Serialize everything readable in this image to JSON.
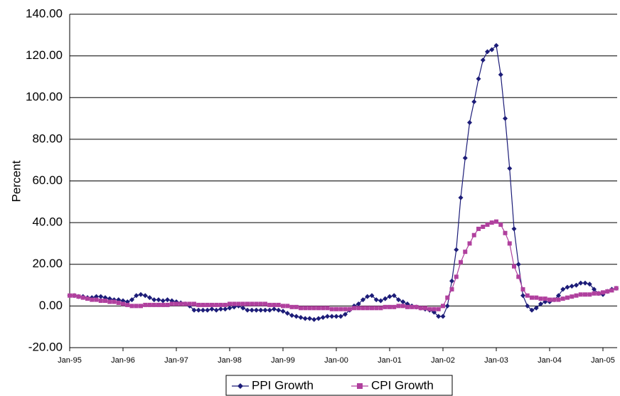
{
  "chart_data": {
    "type": "line",
    "y_label": "Percent",
    "categories": [
      "Jan-95",
      null,
      null,
      null,
      null,
      null,
      null,
      null,
      null,
      null,
      null,
      null,
      "Jan-96",
      null,
      null,
      null,
      null,
      null,
      null,
      null,
      null,
      null,
      null,
      null,
      "Jan-97",
      null,
      null,
      null,
      null,
      null,
      null,
      null,
      null,
      null,
      null,
      null,
      "Jan-98",
      null,
      null,
      null,
      null,
      null,
      null,
      null,
      null,
      null,
      null,
      null,
      "Jan-99",
      null,
      null,
      null,
      null,
      null,
      null,
      null,
      null,
      null,
      null,
      null,
      "Jan-00",
      null,
      null,
      null,
      null,
      null,
      null,
      null,
      null,
      null,
      null,
      null,
      "Jan-01",
      null,
      null,
      null,
      null,
      null,
      null,
      null,
      null,
      null,
      null,
      null,
      "Jan-02",
      null,
      null,
      null,
      null,
      null,
      null,
      null,
      null,
      null,
      null,
      null,
      "Jan-03",
      null,
      null,
      null,
      null,
      null,
      null,
      null,
      null,
      null,
      null,
      null,
      "Jan-04",
      null,
      null,
      null,
      null,
      null,
      null,
      null,
      null,
      null,
      null,
      null,
      "Jan-05",
      null,
      null,
      null
    ],
    "series": [
      {
        "name": "PPI Growth",
        "color": "#1c1c78",
        "marker": "diamond",
        "values": [
          5,
          5,
          4.5,
          4.5,
          4,
          4,
          4.5,
          4.5,
          4,
          3.5,
          3,
          3,
          2.5,
          2,
          3,
          5,
          5.5,
          5,
          4,
          3,
          3,
          2.5,
          3,
          2.5,
          2,
          1.5,
          1,
          0,
          -2,
          -2,
          -2,
          -2,
          -1.5,
          -2,
          -1.5,
          -1.5,
          -1,
          -0.5,
          0,
          -1,
          -2,
          -2,
          -2,
          -2,
          -2,
          -2,
          -1.5,
          -2,
          -2.5,
          -3.5,
          -4.5,
          -5,
          -5.5,
          -6,
          -6,
          -6.5,
          -6,
          -5.5,
          -5,
          -5,
          -5,
          -5,
          -4,
          -2,
          0,
          1,
          3,
          4.5,
          5,
          3,
          2.5,
          3.5,
          4.5,
          5,
          3,
          2,
          1,
          0,
          -0.5,
          -1,
          -1.5,
          -2,
          -3,
          -5,
          -5,
          0,
          12,
          27,
          52,
          71,
          88,
          98,
          109,
          118,
          122,
          123,
          125,
          111,
          90,
          66,
          37,
          20,
          5,
          0,
          -2,
          -1,
          1,
          2,
          2,
          3,
          5,
          8,
          9,
          9.5,
          10,
          11,
          11,
          10.5,
          8,
          6,
          5.5,
          7,
          8,
          8.5
        ]
      },
      {
        "name": "CPI Growth",
        "color": "#b0409e",
        "marker": "square",
        "values": [
          5,
          5,
          4.5,
          4,
          3.5,
          3,
          3,
          2.5,
          2.5,
          2,
          2,
          1.5,
          1,
          0.5,
          0,
          0,
          0,
          0.5,
          0.5,
          0.5,
          0.5,
          0.5,
          0.5,
          1,
          1,
          1,
          1,
          1,
          1,
          0.5,
          0.5,
          0.5,
          0.5,
          0.5,
          0.5,
          0.5,
          1,
          1,
          1,
          1,
          1,
          1,
          1,
          1,
          1,
          0.5,
          0.5,
          0.5,
          0,
          0,
          -0.5,
          -0.5,
          -1,
          -1,
          -1,
          -1,
          -1,
          -1,
          -1,
          -1.5,
          -1.5,
          -1.5,
          -1.5,
          -1.5,
          -1,
          -1,
          -1,
          -1,
          -1,
          -1,
          -1,
          -0.5,
          -0.5,
          -0.5,
          0,
          0,
          -0.5,
          -0.5,
          -0.5,
          -1,
          -1,
          -1.5,
          -1.5,
          -1.5,
          0,
          4,
          8,
          14,
          21,
          26,
          30,
          34,
          37,
          38,
          39,
          40,
          40.5,
          39,
          35,
          30,
          19,
          14,
          8,
          5,
          4,
          4,
          3.5,
          3.5,
          3,
          3,
          3,
          3.5,
          4,
          4.5,
          5,
          5.5,
          5.5,
          5.5,
          6,
          6,
          6.5,
          7,
          7.5,
          8.5
        ]
      }
    ],
    "ylim": [
      -20,
      140
    ],
    "yticks": [
      {
        "value": -20,
        "label": "-20.00"
      },
      {
        "value": 0,
        "label": "0.00"
      },
      {
        "value": 20,
        "label": "20.00"
      },
      {
        "value": 40,
        "label": "40.00"
      },
      {
        "value": 60,
        "label": "60.00"
      },
      {
        "value": 80,
        "label": "80.00"
      },
      {
        "value": 100,
        "label": "100.00"
      },
      {
        "value": 120,
        "label": "120.00"
      },
      {
        "value": 140,
        "label": "140.00"
      }
    ],
    "grid": true,
    "legend": "bottom"
  }
}
